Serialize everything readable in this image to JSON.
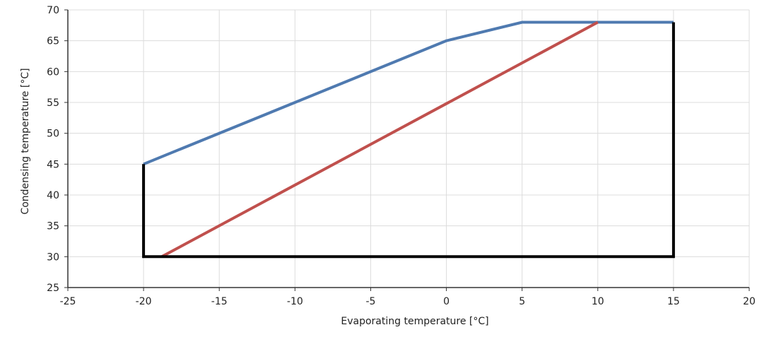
{
  "chart_data": {
    "type": "line",
    "title": "",
    "xlabel": "Evaporating temperature [°C]",
    "ylabel": "Condensing temperature [°C]",
    "xlim": [
      -25,
      20
    ],
    "ylim": [
      25,
      70
    ],
    "xticks": [
      -25,
      -20,
      -15,
      -10,
      -5,
      0,
      5,
      10,
      15,
      20
    ],
    "yticks": [
      25,
      30,
      35,
      40,
      45,
      50,
      55,
      60,
      65,
      70
    ],
    "grid": true,
    "legend": "none",
    "series": [
      {
        "color": "#4f7ab0",
        "points": [
          [
            -20,
            45
          ],
          [
            0,
            65
          ],
          [
            5,
            68
          ],
          [
            15,
            68
          ]
        ]
      },
      {
        "color": "#c0504d",
        "points": [
          [
            -18.8,
            30
          ],
          [
            10,
            68
          ]
        ]
      },
      {
        "color": "#000000",
        "points": [
          [
            -20,
            45
          ],
          [
            -20,
            30
          ],
          [
            15,
            30
          ],
          [
            15,
            68
          ]
        ]
      }
    ]
  }
}
